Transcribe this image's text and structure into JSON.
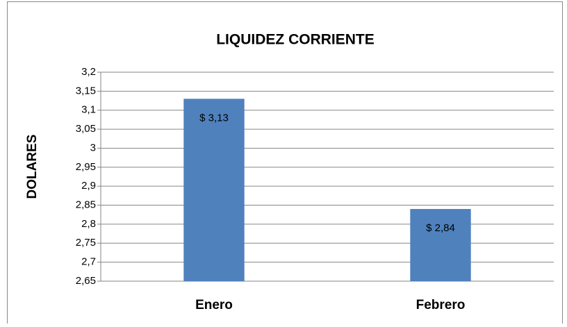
{
  "chart_data": {
    "type": "bar",
    "title": "LIQUIDEZ CORRIENTE",
    "y_label": "DOLARES",
    "categories": [
      "Enero",
      "Febrero"
    ],
    "values": [
      3.13,
      2.84
    ],
    "value_labels": [
      "$ 3,13",
      "$ 2,84"
    ],
    "color": "#4f81bd",
    "ylim": [
      2.65,
      3.2
    ],
    "yticks": [
      {
        "value": 2.65,
        "label": "2,65"
      },
      {
        "value": 2.7,
        "label": "2,7"
      },
      {
        "value": 2.75,
        "label": "2,75"
      },
      {
        "value": 2.8,
        "label": "2,8"
      },
      {
        "value": 2.85,
        "label": "2,85"
      },
      {
        "value": 2.9,
        "label": "2,9"
      },
      {
        "value": 2.95,
        "label": "2,95"
      },
      3,
      {
        "value": 3.05,
        "label": "3,05"
      },
      {
        "value": 3.1,
        "label": "3,1"
      },
      {
        "value": 3.15,
        "label": "3,15"
      },
      {
        "value": 3.2,
        "label": "3,2"
      }
    ],
    "grid": true
  }
}
